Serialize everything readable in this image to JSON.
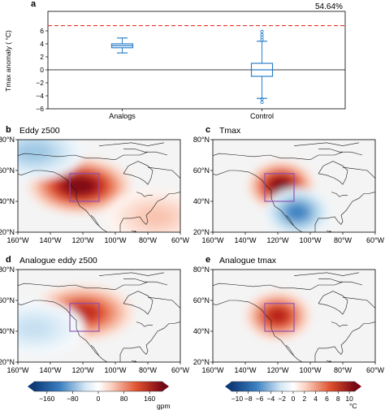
{
  "colors": {
    "box": "#2a7fc8",
    "ref_line": "#e8332a",
    "map_bg": "#f4f4f4",
    "purple": "#8b4bb5",
    "coast": "#1a1a1a"
  },
  "chart_data": [
    {
      "panel": "a",
      "type": "box",
      "annotation": "54.64%",
      "ylabel": "Tmax anomaly ( °C)",
      "ylim": [
        -6,
        9
      ],
      "yticks": [
        -6,
        -4,
        -2,
        0,
        2,
        4,
        6
      ],
      "ref_line": 6.8,
      "categories": [
        "Analogs",
        "Control"
      ],
      "boxes": [
        {
          "name": "Analogs",
          "whisker_low": 2.6,
          "q1": 3.4,
          "median": 3.7,
          "q3": 4.0,
          "whisker_high": 4.9,
          "outliers": []
        },
        {
          "name": "Control",
          "whisker_low": -4.4,
          "q1": -1.0,
          "median": 0.0,
          "q3": 1.0,
          "whisker_high": 4.4,
          "outliers": [
            -5.0,
            -4.5,
            4.6,
            5.0,
            5.4,
            5.9
          ]
        }
      ]
    },
    {
      "panel": "b",
      "type": "heatmap",
      "title": "Eddy z500",
      "xticks": [
        "160°W",
        "140°W",
        "120°W",
        "100°W",
        "80°W",
        "60°W"
      ],
      "yticks": [
        "80°N",
        "60°N",
        "40°N",
        "20°N"
      ],
      "blobs": [
        {
          "lon": -122,
          "lat": 50,
          "value": 160
        },
        {
          "lon": -150,
          "lat": 72,
          "value": -60
        },
        {
          "lon": -75,
          "lat": 30,
          "value": 40
        }
      ]
    },
    {
      "panel": "c",
      "type": "heatmap",
      "title": "Tmax",
      "xticks": [
        "160°W",
        "140°W",
        "120°W",
        "100°W",
        "80°W",
        "60°W"
      ],
      "yticks": [
        "80°N",
        "60°N",
        "40°N",
        "20°N"
      ],
      "blobs": [
        {
          "lon": -118,
          "lat": 50,
          "value": 10
        },
        {
          "lon": -108,
          "lat": 33,
          "value": -6
        }
      ]
    },
    {
      "panel": "d",
      "type": "heatmap",
      "title": "Analogue eddy z500",
      "xticks": [
        "160°W",
        "140°W",
        "120°W",
        "100°W",
        "80°W",
        "60°W"
      ],
      "yticks": [
        "80°N",
        "60°N",
        "40°N",
        "20°N"
      ],
      "blobs": [
        {
          "lon": -120,
          "lat": 52,
          "value": 120
        },
        {
          "lon": -150,
          "lat": 42,
          "value": -40
        }
      ]
    },
    {
      "panel": "e",
      "type": "heatmap",
      "title": "Analogue tmax",
      "xticks": [
        "160°W",
        "140°W",
        "120°W",
        "100°W",
        "80°W",
        "60°W"
      ],
      "yticks": [
        "80°N",
        "60°N",
        "40°N",
        "20°N"
      ],
      "blobs": [
        {
          "lon": -120,
          "lat": 50,
          "value": 8
        }
      ]
    }
  ],
  "labels": {
    "a": "a",
    "b": "b",
    "c": "c",
    "d": "d",
    "e": "e"
  },
  "colorbars": [
    {
      "ticks": [
        "−160",
        "−80",
        "0",
        "80",
        "160"
      ],
      "unit": "gpm"
    },
    {
      "ticks": [
        "−10",
        "−8",
        "−6",
        "−4",
        "−2",
        "0",
        "2",
        "4",
        "6",
        "8",
        "10"
      ],
      "unit": "°C"
    }
  ]
}
